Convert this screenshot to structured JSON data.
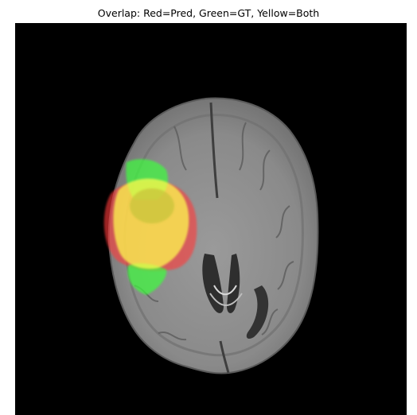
{
  "figure": {
    "title": "Overlap: Red=Pred, Green=GT, Yellow=Both"
  },
  "image": {
    "subject": "axial brain MRI slice with segmentation overlay",
    "background_color": "#000000",
    "tissue_color": "#8e8e8e"
  },
  "overlay": {
    "legend_colors": {
      "prediction": "#ff3b3b",
      "ground_truth": "#3cff3c",
      "both": "#ffff50"
    },
    "opacity": 0.6
  }
}
